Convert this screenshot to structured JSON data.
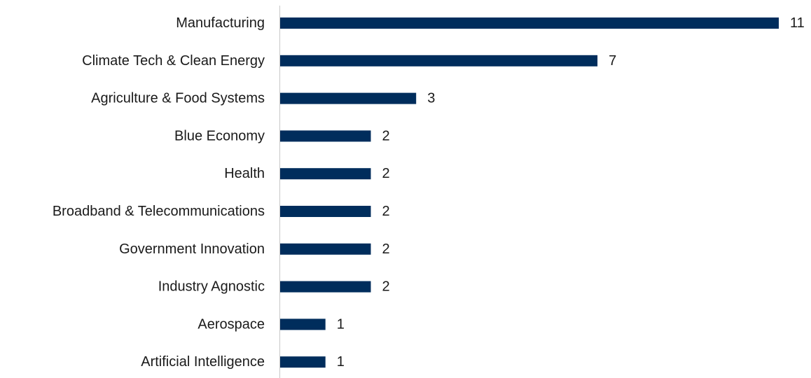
{
  "chart_data": {
    "type": "bar",
    "orientation": "horizontal",
    "title": "",
    "xlabel": "",
    "ylabel": "",
    "categories": [
      "Manufacturing",
      "Climate Tech & Clean Energy",
      "Agriculture & Food Systems",
      "Blue Economy",
      "Health",
      "Broadband & Telecommunications",
      "Government Innovation",
      "Industry Agnostic",
      "Aerospace",
      "Artificial Intelligence"
    ],
    "values": [
      11,
      7,
      3,
      2,
      2,
      2,
      2,
      2,
      1,
      1
    ],
    "xlim": [
      0,
      11
    ],
    "grid": false,
    "legend": "none",
    "data_labels": true
  },
  "colors": {
    "bar": "#002D5C",
    "axis": "#c8c8c8",
    "text": "#1a1a1a"
  }
}
